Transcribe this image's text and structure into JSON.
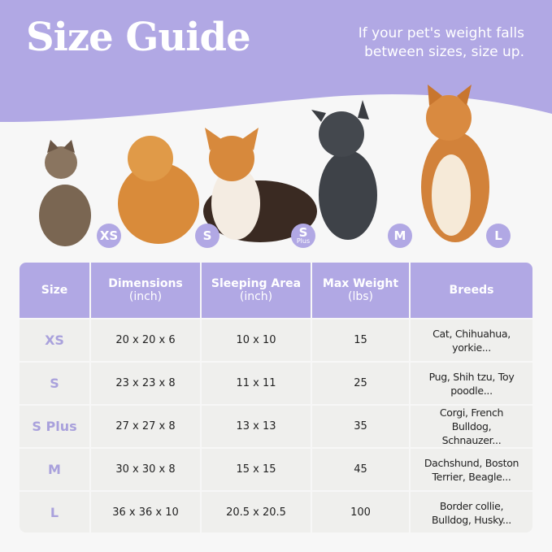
{
  "header": {
    "title": "Size Guide",
    "tagline": "If your pet's weight falls between sizes, size up."
  },
  "colors": {
    "accent": "#b1a8e4",
    "cell": "#efefed"
  },
  "pets": [
    {
      "animal": "cat",
      "badge": "XS"
    },
    {
      "animal": "pomeranian",
      "badge": "S"
    },
    {
      "animal": "corgi",
      "badge": "S",
      "badge_sub": "Plus"
    },
    {
      "animal": "french-bulldog",
      "badge": "M"
    },
    {
      "animal": "shiba-inu",
      "badge": "L"
    }
  ],
  "table": {
    "headers": [
      {
        "t": "Size",
        "s": ""
      },
      {
        "t": "Dimensions",
        "s": "(inch)"
      },
      {
        "t": "Sleeping Area",
        "s": "(inch)"
      },
      {
        "t": "Max Weight",
        "s": "(lbs)"
      },
      {
        "t": "Breeds",
        "s": ""
      }
    ],
    "rows": [
      [
        "XS",
        "20 x 20 x 6",
        "10 x 10",
        "15",
        "Cat, Chihuahua, yorkie..."
      ],
      [
        "S",
        "23 x 23 x 8",
        "11 x 11",
        "25",
        "Pug, Shih tzu, Toy poodle..."
      ],
      [
        "S Plus",
        "27 x 27 x 8",
        "13 x 13",
        "35",
        "Corgi, French Bulldog, Schnauzer..."
      ],
      [
        "M",
        "30 x 30 x 8",
        "15 x 15",
        "45",
        "Dachshund, Boston Terrier, Beagle..."
      ],
      [
        "L",
        "36 x 36 x 10",
        "20.5 x 20.5",
        "100",
        "Border collie, Bulldog, Husky..."
      ]
    ]
  }
}
